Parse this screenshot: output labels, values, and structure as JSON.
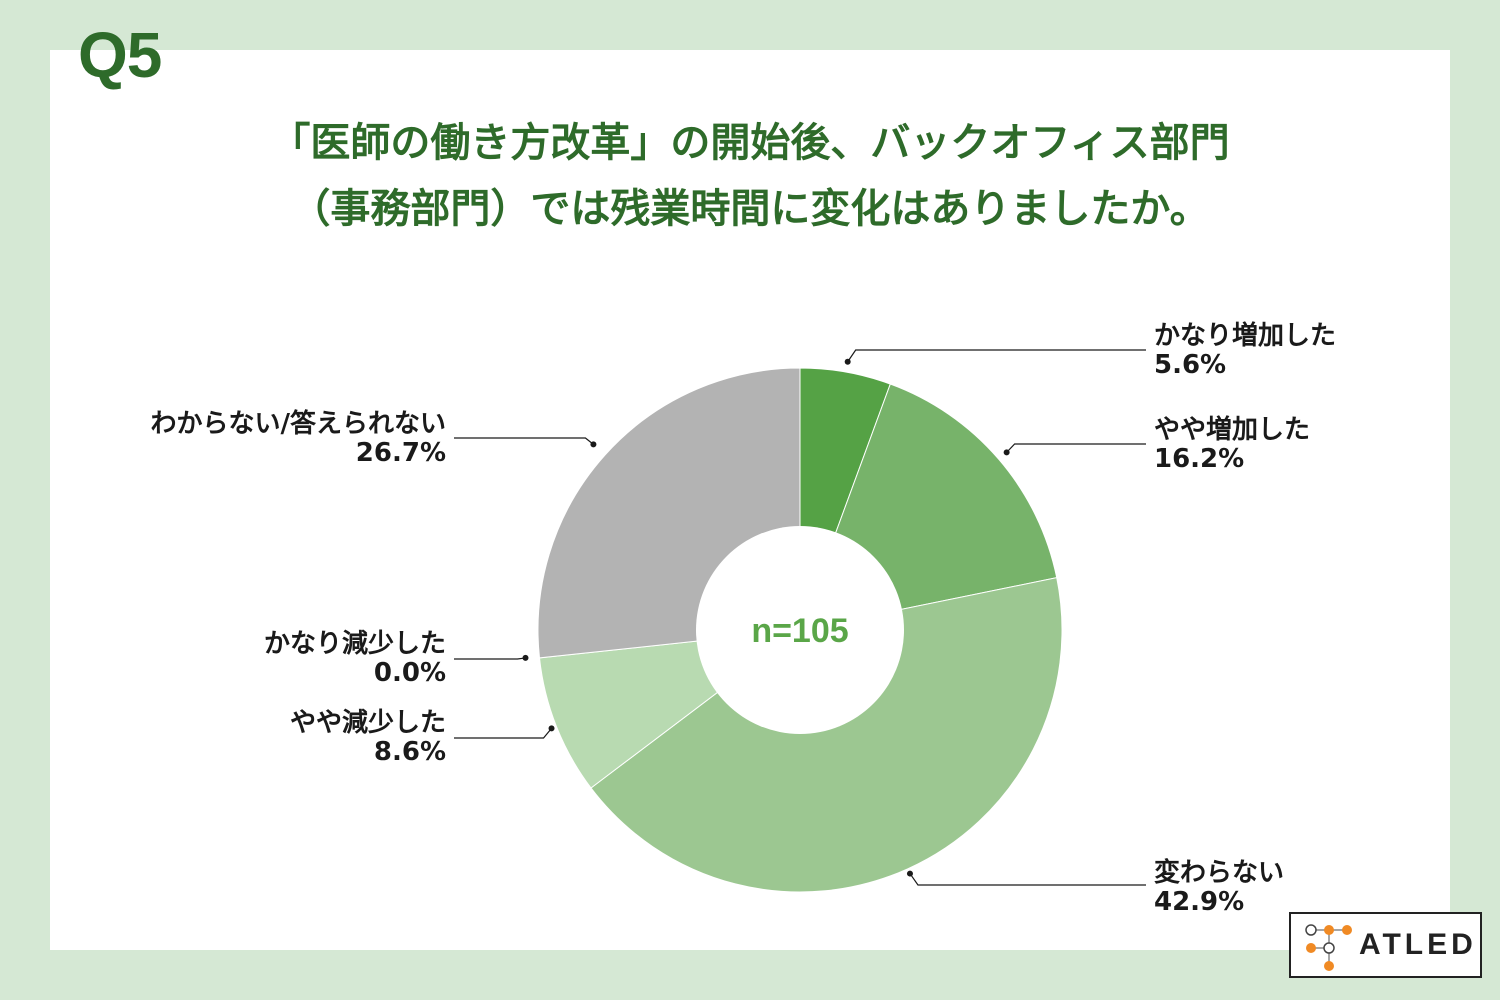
{
  "question_label": "Q5",
  "title_lines": [
    "「医師の働き方改革」の開始後、バックオフィス部門",
    "（事務部門）では残業時間に変化はありましたか。"
  ],
  "chart_data": {
    "type": "pie",
    "donut": true,
    "center_label": "n=105",
    "slices": [
      {
        "label": "かなり増加した",
        "value": 5.6,
        "value_label": "5.6%",
        "color": "#55a245"
      },
      {
        "label": "やや増加した",
        "value": 16.2,
        "value_label": "16.2%",
        "color": "#77b36a"
      },
      {
        "label": "変わらない",
        "value": 42.9,
        "value_label": "42.9%",
        "color": "#9cc791"
      },
      {
        "label": "やや減少した",
        "value": 8.6,
        "value_label": "8.6%",
        "color": "#b8dab1"
      },
      {
        "label": "かなり減少した",
        "value": 0.0,
        "value_label": "0.0%",
        "color": "#d5e8d4"
      },
      {
        "label": "わからない/答えられない",
        "value": 26.7,
        "value_label": "26.7%",
        "color": "#b3b3b3"
      }
    ]
  },
  "logo": {
    "text": "ATLED"
  }
}
